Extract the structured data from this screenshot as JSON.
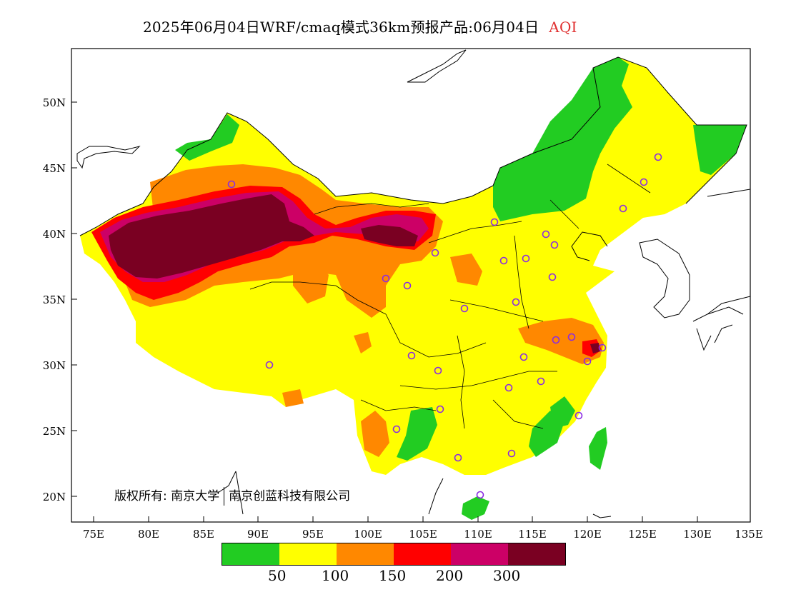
{
  "title": {
    "main": "2025年06月04日WRF/cmaq模式36km预报产品:06月04日",
    "variable": "AQI"
  },
  "copyright": {
    "prefix": "版权所有:",
    "org1": "南京大学",
    "org2": "南京创蓝科技有限公司"
  },
  "axes": {
    "lat_labels": [
      "50N",
      "45N",
      "40N",
      "35N",
      "30N",
      "25N",
      "20N"
    ],
    "lon_labels": [
      "75E",
      "80E",
      "85E",
      "90E",
      "95E",
      "100E",
      "105E",
      "110E",
      "115E",
      "120E",
      "125E",
      "130E",
      "135E"
    ]
  },
  "legend": {
    "colors": [
      "#22cc22",
      "#ffff00",
      "#ff8800",
      "#ff0000",
      "#cc0066",
      "#7a0022"
    ],
    "labels": [
      "50",
      "100",
      "150",
      "200",
      "300"
    ]
  }
}
